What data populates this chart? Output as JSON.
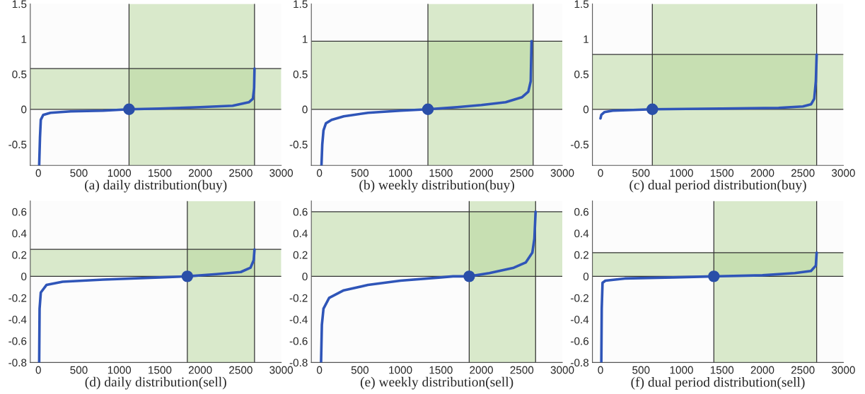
{
  "chart_data": [
    {
      "type": "line",
      "xlabel": "(a) daily distribution(buy)",
      "xlim": [
        -100,
        3000
      ],
      "ylim": [
        -0.8,
        1.5
      ],
      "xticks": [
        0,
        500,
        1000,
        1500,
        2000,
        2500,
        3000
      ],
      "yticks": [
        -0.5,
        0,
        0.5,
        1,
        1.5
      ],
      "grid": false,
      "legend": false,
      "series": [
        {
          "color": "#2f55b8",
          "x": [
            10,
            20,
            30,
            60,
            150,
            400,
            800,
            1120,
            1500,
            2000,
            2400,
            2600,
            2650,
            2665,
            2670
          ],
          "values": [
            -0.8,
            -0.4,
            -0.15,
            -0.08,
            -0.05,
            -0.03,
            -0.02,
            0,
            0.01,
            0.03,
            0.05,
            0.1,
            0.15,
            0.3,
            0.58
          ]
        },
        {
          "type": "scatter",
          "marker": "circle",
          "color": "#2a4fa8",
          "x": [
            1120
          ],
          "values": [
            0
          ]
        }
      ],
      "bands": [
        {
          "axis": "x",
          "from": 1120,
          "to": 2670,
          "color": "#b5d69a"
        },
        {
          "axis": "y",
          "from": 0,
          "to": 0.58,
          "color": "#b5d69a"
        }
      ],
      "ref_lines": [
        {
          "axis": "x",
          "value": 1120,
          "color": "#333333"
        },
        {
          "axis": "x",
          "value": 2670,
          "color": "#333333"
        },
        {
          "axis": "y",
          "value": 0,
          "color": "#333333"
        },
        {
          "axis": "y",
          "value": 0.58,
          "color": "#333333"
        }
      ]
    },
    {
      "type": "line",
      "xlabel": "(b) weekly distribution(buy)",
      "xlim": [
        -100,
        3000
      ],
      "ylim": [
        -0.8,
        1.5
      ],
      "xticks": [
        0,
        500,
        1000,
        1500,
        2000,
        2500,
        3000
      ],
      "yticks": [
        -0.5,
        0,
        0.5,
        1,
        1.5
      ],
      "grid": false,
      "legend": false,
      "series": [
        {
          "color": "#2f55b8",
          "x": [
            25,
            35,
            50,
            80,
            150,
            300,
            600,
            1000,
            1340,
            1700,
            2000,
            2300,
            2500,
            2580,
            2610,
            2620
          ],
          "values": [
            -0.8,
            -0.5,
            -0.3,
            -0.2,
            -0.15,
            -0.1,
            -0.05,
            -0.02,
            0,
            0.03,
            0.06,
            0.1,
            0.17,
            0.25,
            0.4,
            0.97
          ]
        },
        {
          "type": "scatter",
          "marker": "circle",
          "color": "#2a4fa8",
          "x": [
            1340
          ],
          "values": [
            0
          ]
        }
      ],
      "bands": [
        {
          "axis": "x",
          "from": 1340,
          "to": 2640,
          "color": "#b5d69a"
        },
        {
          "axis": "y",
          "from": 0,
          "to": 0.97,
          "color": "#b5d69a"
        }
      ],
      "ref_lines": [
        {
          "axis": "x",
          "value": 1340,
          "color": "#333333"
        },
        {
          "axis": "x",
          "value": 2640,
          "color": "#333333"
        },
        {
          "axis": "y",
          "value": 0,
          "color": "#333333"
        },
        {
          "axis": "y",
          "value": 0.97,
          "color": "#333333"
        }
      ]
    },
    {
      "type": "line",
      "xlabel": "(c) dual period distribution(buy)",
      "xlim": [
        -100,
        3000
      ],
      "ylim": [
        -0.8,
        1.5
      ],
      "xticks": [
        0,
        500,
        1000,
        1500,
        2000,
        2500,
        3000
      ],
      "yticks": [
        -0.5,
        0,
        0.5,
        1,
        1.5
      ],
      "grid": false,
      "legend": false,
      "series": [
        {
          "color": "#2f55b8",
          "x": [
            0,
            10,
            50,
            150,
            400,
            640,
            1500,
            2200,
            2500,
            2600,
            2640,
            2660,
            2670
          ],
          "values": [
            -0.13,
            -0.08,
            -0.04,
            -0.02,
            -0.01,
            0,
            0.01,
            0.02,
            0.04,
            0.07,
            0.15,
            0.4,
            0.78
          ]
        },
        {
          "type": "scatter",
          "marker": "circle",
          "color": "#2a4fa8",
          "x": [
            640
          ],
          "values": [
            0
          ]
        }
      ],
      "bands": [
        {
          "axis": "x",
          "from": 640,
          "to": 2670,
          "color": "#b5d69a"
        },
        {
          "axis": "y",
          "from": 0,
          "to": 0.78,
          "color": "#b5d69a"
        }
      ],
      "ref_lines": [
        {
          "axis": "x",
          "value": 640,
          "color": "#333333"
        },
        {
          "axis": "x",
          "value": 2670,
          "color": "#333333"
        },
        {
          "axis": "y",
          "value": 0,
          "color": "#333333"
        },
        {
          "axis": "y",
          "value": 0.78,
          "color": "#333333"
        }
      ]
    },
    {
      "type": "line",
      "xlabel": "(d) daily distribution(sell)",
      "xlim": [
        -100,
        3000
      ],
      "ylim": [
        -0.8,
        0.7
      ],
      "xticks": [
        0,
        500,
        1000,
        1500,
        2000,
        2500,
        3000
      ],
      "yticks": [
        -0.8,
        -0.6,
        -0.4,
        -0.2,
        0,
        0.2,
        0.4,
        0.6
      ],
      "grid": false,
      "legend": false,
      "series": [
        {
          "color": "#2f55b8",
          "x": [
            10,
            15,
            30,
            100,
            300,
            800,
            1500,
            1840,
            2200,
            2500,
            2620,
            2660,
            2670
          ],
          "values": [
            -0.8,
            -0.3,
            -0.15,
            -0.08,
            -0.05,
            -0.03,
            -0.01,
            0,
            0.02,
            0.04,
            0.08,
            0.15,
            0.25
          ]
        },
        {
          "type": "scatter",
          "marker": "circle",
          "color": "#2a4fa8",
          "x": [
            1840
          ],
          "values": [
            0
          ]
        }
      ],
      "bands": [
        {
          "axis": "x",
          "from": 1840,
          "to": 2670,
          "color": "#b5d69a"
        },
        {
          "axis": "y",
          "from": 0,
          "to": 0.25,
          "color": "#b5d69a"
        }
      ],
      "ref_lines": [
        {
          "axis": "x",
          "value": 1840,
          "color": "#333333"
        },
        {
          "axis": "x",
          "value": 2670,
          "color": "#333333"
        },
        {
          "axis": "y",
          "value": 0,
          "color": "#333333"
        },
        {
          "axis": "y",
          "value": 0.25,
          "color": "#333333"
        }
      ]
    },
    {
      "type": "line",
      "xlabel": "(e) weekly distribution(sell)",
      "xlim": [
        -100,
        3000
      ],
      "ylim": [
        -0.8,
        0.7
      ],
      "xticks": [
        0,
        500,
        1000,
        1500,
        2000,
        2500,
        3000
      ],
      "yticks": [
        -0.8,
        -0.6,
        -0.4,
        -0.2,
        0,
        0.2,
        0.4,
        0.6
      ],
      "grid": false,
      "legend": false,
      "series": [
        {
          "color": "#2f55b8",
          "x": [
            20,
            30,
            50,
            120,
            300,
            600,
            1000,
            1500,
            1650,
            1850,
            2100,
            2400,
            2550,
            2630,
            2655,
            2670
          ],
          "values": [
            -0.8,
            -0.45,
            -0.3,
            -0.2,
            -0.13,
            -0.08,
            -0.04,
            -0.01,
            0,
            0,
            0.03,
            0.08,
            0.13,
            0.22,
            0.35,
            0.6
          ]
        },
        {
          "type": "scatter",
          "marker": "circle",
          "color": "#2a4fa8",
          "x": [
            1850
          ],
          "values": [
            0
          ]
        }
      ],
      "bands": [
        {
          "axis": "x",
          "from": 1850,
          "to": 2670,
          "color": "#b5d69a"
        },
        {
          "axis": "y",
          "from": 0,
          "to": 0.6,
          "color": "#b5d69a"
        }
      ],
      "ref_lines": [
        {
          "axis": "x",
          "value": 1850,
          "color": "#333333"
        },
        {
          "axis": "x",
          "value": 2670,
          "color": "#333333"
        },
        {
          "axis": "y",
          "value": 0,
          "color": "#333333"
        },
        {
          "axis": "y",
          "value": 0.6,
          "color": "#333333"
        }
      ]
    },
    {
      "type": "line",
      "xlabel": "(f) dual period distribution(sell)",
      "xlim": [
        -100,
        3000
      ],
      "ylim": [
        -0.8,
        0.7
      ],
      "xticks": [
        0,
        500,
        1000,
        1500,
        2000,
        2500,
        3000
      ],
      "yticks": [
        -0.8,
        -0.6,
        -0.4,
        -0.2,
        0,
        0.2,
        0.4,
        0.6
      ],
      "grid": false,
      "legend": false,
      "series": [
        {
          "color": "#2f55b8",
          "x": [
            10,
            15,
            25,
            60,
            300,
            900,
            1400,
            2000,
            2400,
            2600,
            2660,
            2670
          ],
          "values": [
            -0.8,
            -0.3,
            -0.06,
            -0.04,
            -0.02,
            -0.01,
            0,
            0.01,
            0.03,
            0.05,
            0.1,
            0.22
          ]
        },
        {
          "type": "scatter",
          "marker": "circle",
          "color": "#2a4fa8",
          "x": [
            1400
          ],
          "values": [
            0
          ]
        }
      ],
      "bands": [
        {
          "axis": "x",
          "from": 1400,
          "to": 2670,
          "color": "#b5d69a"
        },
        {
          "axis": "y",
          "from": 0,
          "to": 0.22,
          "color": "#b5d69a"
        }
      ],
      "ref_lines": [
        {
          "axis": "x",
          "value": 1400,
          "color": "#333333"
        },
        {
          "axis": "x",
          "value": 2670,
          "color": "#333333"
        },
        {
          "axis": "y",
          "value": 0,
          "color": "#333333"
        },
        {
          "axis": "y",
          "value": 0.22,
          "color": "#333333"
        }
      ]
    }
  ]
}
